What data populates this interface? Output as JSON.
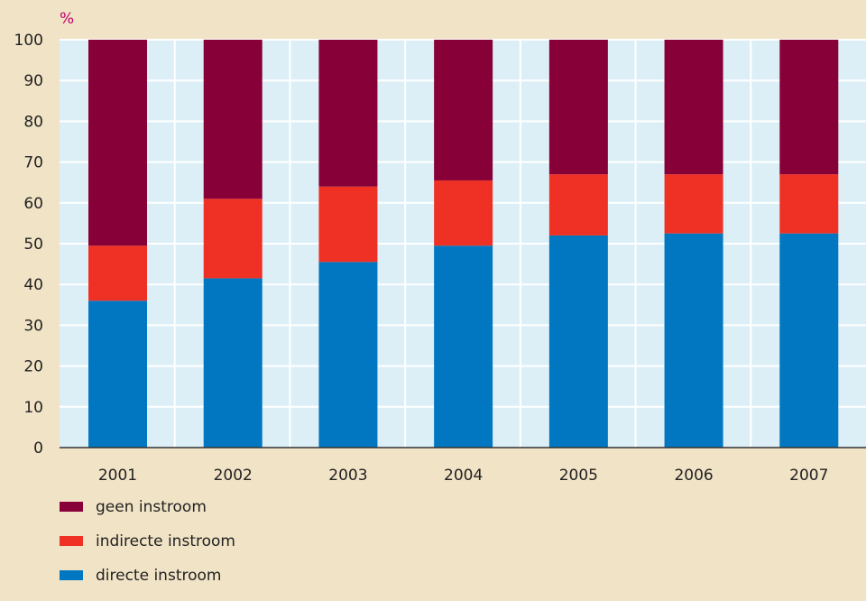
{
  "chart_data": {
    "type": "bar",
    "stacked": true,
    "unit_label": "%",
    "categories": [
      "2001",
      "2002",
      "2003",
      "2004",
      "2005",
      "2006",
      "2007"
    ],
    "ylim": [
      0,
      100
    ],
    "yticks": [
      0,
      10,
      20,
      30,
      40,
      50,
      60,
      70,
      80,
      90,
      100
    ],
    "grid": true,
    "legend_position": "bottom-left",
    "series": [
      {
        "name": "directe instroom",
        "color": "#0077c0",
        "values": [
          36,
          41.5,
          45.5,
          49.5,
          52,
          52.5,
          52.5
        ]
      },
      {
        "name": "indirecte instroom",
        "color": "#ee3124",
        "values": [
          13.5,
          19.5,
          18.5,
          16,
          15,
          14.5,
          14.5
        ]
      },
      {
        "name": "geen instroom",
        "color": "#870038",
        "values": [
          50.5,
          39,
          36,
          34.5,
          33,
          33,
          33
        ]
      }
    ],
    "legend_order": [
      2,
      1,
      0
    ],
    "colors": {
      "background": "#f1e3c6",
      "plot_background": "#dceff7",
      "gridline": "#ffffff",
      "axis": "#333333",
      "unit_label": "#c0006a",
      "tick_text": "#222222"
    }
  }
}
